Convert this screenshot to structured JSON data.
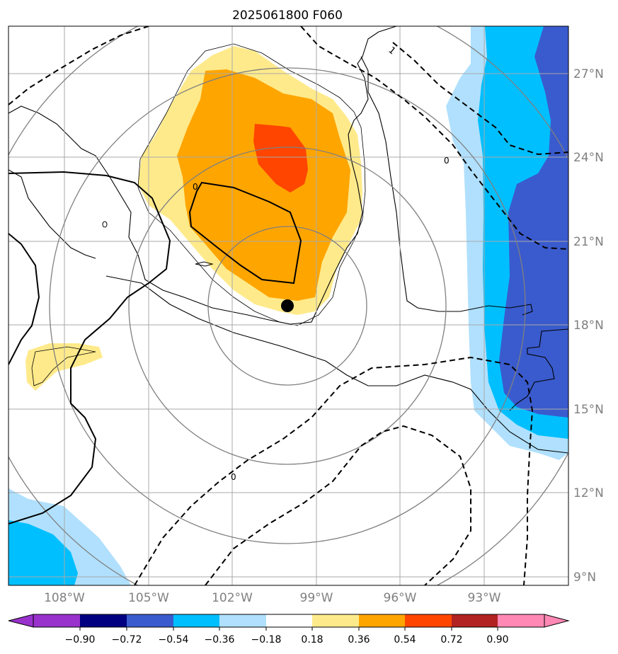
{
  "title": "2025061800 F060",
  "lat_labels": [
    "27°N",
    "24°N",
    "21°N",
    "18°N",
    "15°N",
    "12°N",
    "9°N"
  ],
  "lon_labels": [
    "108°W",
    "105°W",
    "102°W",
    "99°W",
    "96°W",
    "93°W"
  ],
  "colorbar": {
    "labels": [
      "−0.90",
      "−0.72",
      "−0.54",
      "−0.36",
      "−0.18",
      "0.18",
      "0.36",
      "0.54",
      "0.72",
      "0.90"
    ],
    "colors": {
      "under": "#9932cc",
      "c1": "#000080",
      "c2": "#3a5bcd",
      "c3": "#00bfff",
      "c4": "#b0e0fd",
      "c5": "#ffffff",
      "c6": "#ffea8b",
      "c7": "#ffa500",
      "c8": "#ff4500",
      "c9": "#b22222",
      "over": "#ff88b4"
    }
  },
  "contour_labels": {
    "label_1": "1",
    "label_0a": "0",
    "label_0b": "0",
    "label_0c": "0"
  },
  "colors": {
    "gridline": "#a9a9a9",
    "range_ring": "#808080",
    "coastline": "#000000",
    "center_marker": "#000000"
  }
}
